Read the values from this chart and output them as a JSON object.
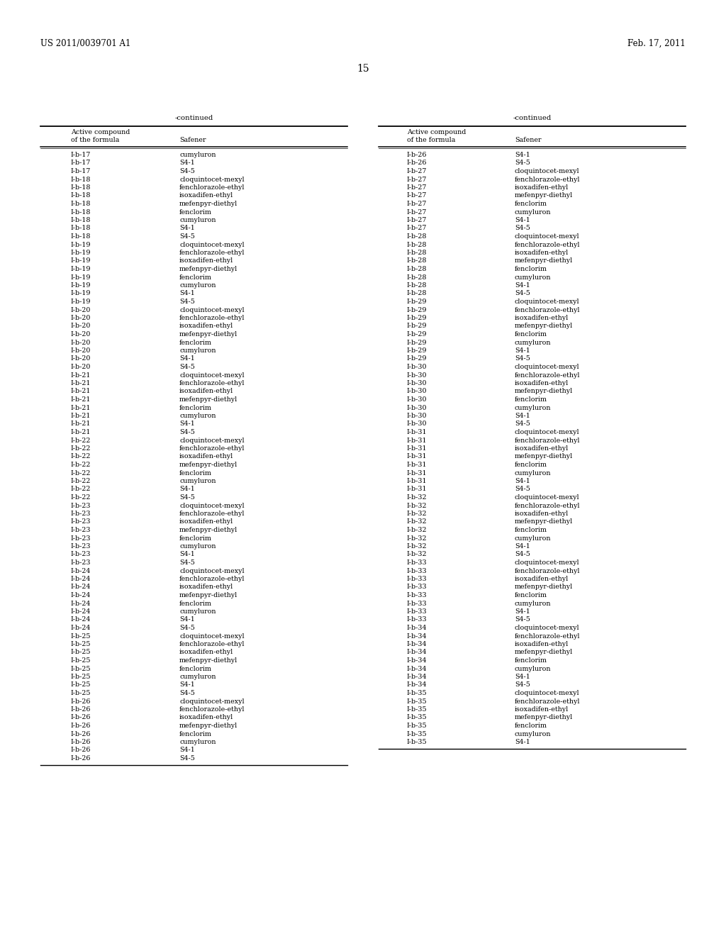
{
  "header_left": "US 2011/0039701 A1",
  "header_right": "Feb. 17, 2011",
  "page_number": "15",
  "continued_label": "-continued",
  "col1_header1": "Active compound",
  "col1_header2": "of the formula",
  "col2_header": "Safener",
  "left_col1": [
    "I-b-17",
    "I-b-17",
    "I-b-17",
    "I-b-18",
    "I-b-18",
    "I-b-18",
    "I-b-18",
    "I-b-18",
    "I-b-18",
    "I-b-18",
    "I-b-18",
    "I-b-19",
    "I-b-19",
    "I-b-19",
    "I-b-19",
    "I-b-19",
    "I-b-19",
    "I-b-19",
    "I-b-19",
    "I-b-20",
    "I-b-20",
    "I-b-20",
    "I-b-20",
    "I-b-20",
    "I-b-20",
    "I-b-20",
    "I-b-20",
    "I-b-21",
    "I-b-21",
    "I-b-21",
    "I-b-21",
    "I-b-21",
    "I-b-21",
    "I-b-21",
    "I-b-21",
    "I-b-22",
    "I-b-22",
    "I-b-22",
    "I-b-22",
    "I-b-22",
    "I-b-22",
    "I-b-22",
    "I-b-22",
    "I-b-23",
    "I-b-23",
    "I-b-23",
    "I-b-23",
    "I-b-23",
    "I-b-23",
    "I-b-23",
    "I-b-23",
    "I-b-24",
    "I-b-24",
    "I-b-24",
    "I-b-24",
    "I-b-24",
    "I-b-24",
    "I-b-24",
    "I-b-24",
    "I-b-25",
    "I-b-25",
    "I-b-25",
    "I-b-25",
    "I-b-25",
    "I-b-25",
    "I-b-25",
    "I-b-25",
    "I-b-26",
    "I-b-26",
    "I-b-26",
    "I-b-26",
    "I-b-26",
    "I-b-26",
    "I-b-26",
    "I-b-26"
  ],
  "left_col2": [
    "cumyluron",
    "S4-1",
    "S4-5",
    "cloquintocet-mexyl",
    "fenchlorazole-ethyl",
    "isoxadifen-ethyl",
    "mefenpyr-diethyl",
    "fenclorim",
    "cumyluron",
    "S4-1",
    "S4-5",
    "cloquintocet-mexyl",
    "fenchlorazole-ethyl",
    "isoxadifen-ethyl",
    "mefenpyr-diethyl",
    "fenclorim",
    "cumyluron",
    "S4-1",
    "S4-5",
    "cloquintocet-mexyl",
    "fenchlorazole-ethyl",
    "isoxadifen-ethyl",
    "mefenpyr-diethyl",
    "fenclorim",
    "cumyluron",
    "S4-1",
    "S4-5",
    "cloquintocet-mexyl",
    "fenchlorazole-ethyl",
    "isoxadifen-ethyl",
    "mefenpyr-diethyl",
    "fenclorim",
    "cumyluron",
    "S4-1",
    "S4-5",
    "cloquintocet-mexyl",
    "fenchlorazole-ethyl",
    "isoxadifen-ethyl",
    "mefenpyr-diethyl",
    "fenclorim",
    "cumyluron",
    "S4-1",
    "S4-5",
    "cloquintocet-mexyl",
    "fenchlorazole-ethyl",
    "isoxadifen-ethyl",
    "mefenpyr-diethyl",
    "fenclorim",
    "cumyluron",
    "S4-1",
    "S4-5",
    "cloquintocet-mexyl",
    "fenchlorazole-ethyl",
    "isoxadifen-ethyl",
    "mefenpyr-diethyl",
    "fenclorim",
    "cumyluron",
    "S4-1",
    "S4-5",
    "cloquintocet-mexyl",
    "fenchlorazole-ethyl",
    "isoxadifen-ethyl",
    "mefenpyr-diethyl",
    "fenclorim",
    "cumyluron",
    "S4-1",
    "S4-5",
    "cloquintocet-mexyl",
    "fenchlorazole-ethyl",
    "isoxadifen-ethyl",
    "mefenpyr-diethyl",
    "fenclorim",
    "cumyluron",
    "S4-1",
    "S4-5"
  ],
  "right_col1": [
    "I-b-26",
    "I-b-26",
    "I-b-27",
    "I-b-27",
    "I-b-27",
    "I-b-27",
    "I-b-27",
    "I-b-27",
    "I-b-27",
    "I-b-27",
    "I-b-28",
    "I-b-28",
    "I-b-28",
    "I-b-28",
    "I-b-28",
    "I-b-28",
    "I-b-28",
    "I-b-28",
    "I-b-29",
    "I-b-29",
    "I-b-29",
    "I-b-29",
    "I-b-29",
    "I-b-29",
    "I-b-29",
    "I-b-29",
    "I-b-30",
    "I-b-30",
    "I-b-30",
    "I-b-30",
    "I-b-30",
    "I-b-30",
    "I-b-30",
    "I-b-30",
    "I-b-31",
    "I-b-31",
    "I-b-31",
    "I-b-31",
    "I-b-31",
    "I-b-31",
    "I-b-31",
    "I-b-31",
    "I-b-32",
    "I-b-32",
    "I-b-32",
    "I-b-32",
    "I-b-32",
    "I-b-32",
    "I-b-32",
    "I-b-32",
    "I-b-33",
    "I-b-33",
    "I-b-33",
    "I-b-33",
    "I-b-33",
    "I-b-33",
    "I-b-33",
    "I-b-33",
    "I-b-34",
    "I-b-34",
    "I-b-34",
    "I-b-34",
    "I-b-34",
    "I-b-34",
    "I-b-34",
    "I-b-34",
    "I-b-35",
    "I-b-35",
    "I-b-35",
    "I-b-35",
    "I-b-35",
    "I-b-35",
    "I-b-35"
  ],
  "right_col2": [
    "S4-1",
    "S4-5",
    "cloquintocet-mexyl",
    "fenchlorazole-ethyl",
    "isoxadifen-ethyl",
    "mefenpyr-diethyl",
    "fenclorim",
    "cumyluron",
    "S4-1",
    "S4-5",
    "cloquintocet-mexyl",
    "fenchlorazole-ethyl",
    "isoxadifen-ethyl",
    "mefenpyr-diethyl",
    "fenclorim",
    "cumyluron",
    "S4-1",
    "S4-5",
    "cloquintocet-mexyl",
    "fenchlorazole-ethyl",
    "isoxadifen-ethyl",
    "mefenpyr-diethyl",
    "fenclorim",
    "cumyluron",
    "S4-1",
    "S4-5",
    "cloquintocet-mexyl",
    "fenchlorazole-ethyl",
    "isoxadifen-ethyl",
    "mefenpyr-diethyl",
    "fenclorim",
    "cumyluron",
    "S4-1",
    "S4-5",
    "cloquintocet-mexyl",
    "fenchlorazole-ethyl",
    "isoxadifen-ethyl",
    "mefenpyr-diethyl",
    "fenclorim",
    "cumyluron",
    "S4-1",
    "S4-5",
    "cloquintocet-mexyl",
    "fenchlorazole-ethyl",
    "isoxadifen-ethyl",
    "mefenpyr-diethyl",
    "fenclorim",
    "cumyluron",
    "S4-1",
    "S4-5",
    "cloquintocet-mexyl",
    "fenchlorazole-ethyl",
    "isoxadifen-ethyl",
    "mefenpyr-diethyl",
    "fenclorim",
    "cumyluron",
    "S4-1",
    "S4-5",
    "cloquintocet-mexyl",
    "fenchlorazole-ethyl",
    "isoxadifen-ethyl",
    "mefenpyr-diethyl",
    "fenclorim",
    "cumyluron",
    "S4-1",
    "S4-5",
    "cloquintocet-mexyl",
    "fenchlorazole-ethyl",
    "isoxadifen-ethyl",
    "mefenpyr-diethyl",
    "fenclorim",
    "cumyluron",
    "S4-1"
  ],
  "bg_color": "#ffffff",
  "text_color": "#000000",
  "data_font_size": 6.8,
  "header_font_size": 8.5,
  "page_num_font_size": 10.0,
  "col_header_font_size": 6.8
}
